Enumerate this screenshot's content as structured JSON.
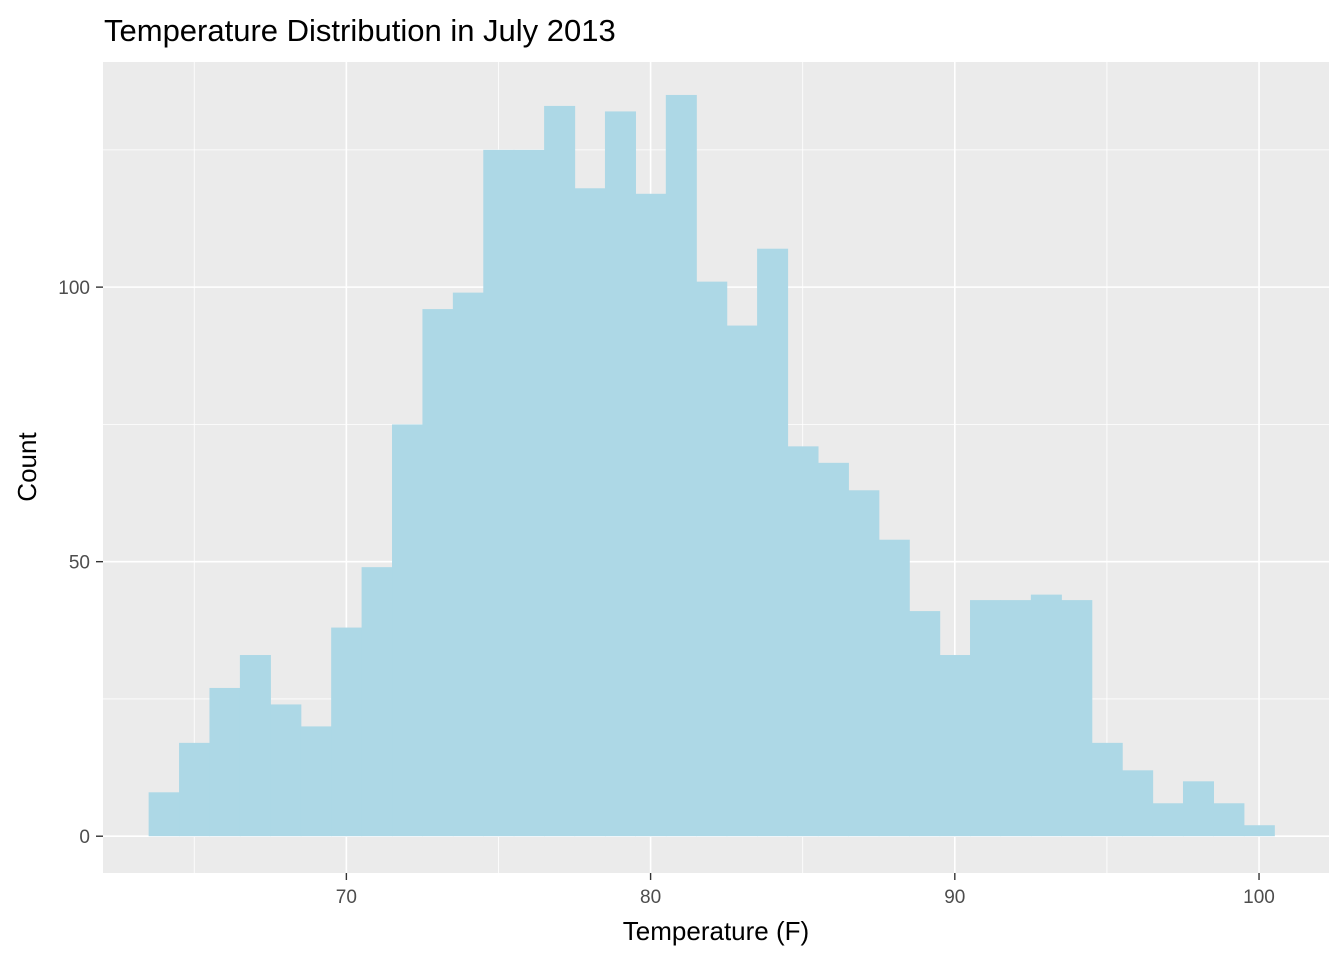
{
  "chart_data": {
    "type": "bar",
    "subtype": "histogram",
    "title": "Temperature Distribution in July 2013",
    "xlabel": "Temperature (F)",
    "ylabel": "Count",
    "xlim": [
      62.0,
      102.3
    ],
    "ylim": [
      -6.7,
      141
    ],
    "x_ticks": [
      70,
      80,
      90,
      100
    ],
    "x_tick_labels": [
      "70",
      "80",
      "90",
      "100"
    ],
    "y_ticks": [
      0,
      50,
      100
    ],
    "y_tick_labels": [
      "0",
      "50",
      "100"
    ],
    "x_minor_ticks": [
      65,
      75,
      85,
      95
    ],
    "y_minor_ticks": [
      25,
      75,
      125
    ],
    "bin_width": 1,
    "bins": [
      {
        "x": 64,
        "count": 8
      },
      {
        "x": 65,
        "count": 17
      },
      {
        "x": 66,
        "count": 27
      },
      {
        "x": 67,
        "count": 33
      },
      {
        "x": 68,
        "count": 24
      },
      {
        "x": 69,
        "count": 20
      },
      {
        "x": 70,
        "count": 38
      },
      {
        "x": 71,
        "count": 49
      },
      {
        "x": 72,
        "count": 75
      },
      {
        "x": 73,
        "count": 96
      },
      {
        "x": 74,
        "count": 99
      },
      {
        "x": 75,
        "count": 125
      },
      {
        "x": 76,
        "count": 125
      },
      {
        "x": 77,
        "count": 133
      },
      {
        "x": 78,
        "count": 118
      },
      {
        "x": 79,
        "count": 132
      },
      {
        "x": 80,
        "count": 117
      },
      {
        "x": 81,
        "count": 135
      },
      {
        "x": 82,
        "count": 101
      },
      {
        "x": 83,
        "count": 93
      },
      {
        "x": 84,
        "count": 107
      },
      {
        "x": 85,
        "count": 71
      },
      {
        "x": 86,
        "count": 68
      },
      {
        "x": 87,
        "count": 63
      },
      {
        "x": 88,
        "count": 54
      },
      {
        "x": 89,
        "count": 41
      },
      {
        "x": 90,
        "count": 33
      },
      {
        "x": 91,
        "count": 43
      },
      {
        "x": 92,
        "count": 43
      },
      {
        "x": 93,
        "count": 44
      },
      {
        "x": 94,
        "count": 43
      },
      {
        "x": 95,
        "count": 17
      },
      {
        "x": 96,
        "count": 12
      },
      {
        "x": 97,
        "count": 6
      },
      {
        "x": 98,
        "count": 10
      },
      {
        "x": 99,
        "count": 6
      },
      {
        "x": 100,
        "count": 2
      }
    ],
    "colors": {
      "fill": "#add8e6",
      "panel_background": "#ebebeb",
      "grid": "#ffffff"
    },
    "grid": true,
    "legend": "none"
  }
}
